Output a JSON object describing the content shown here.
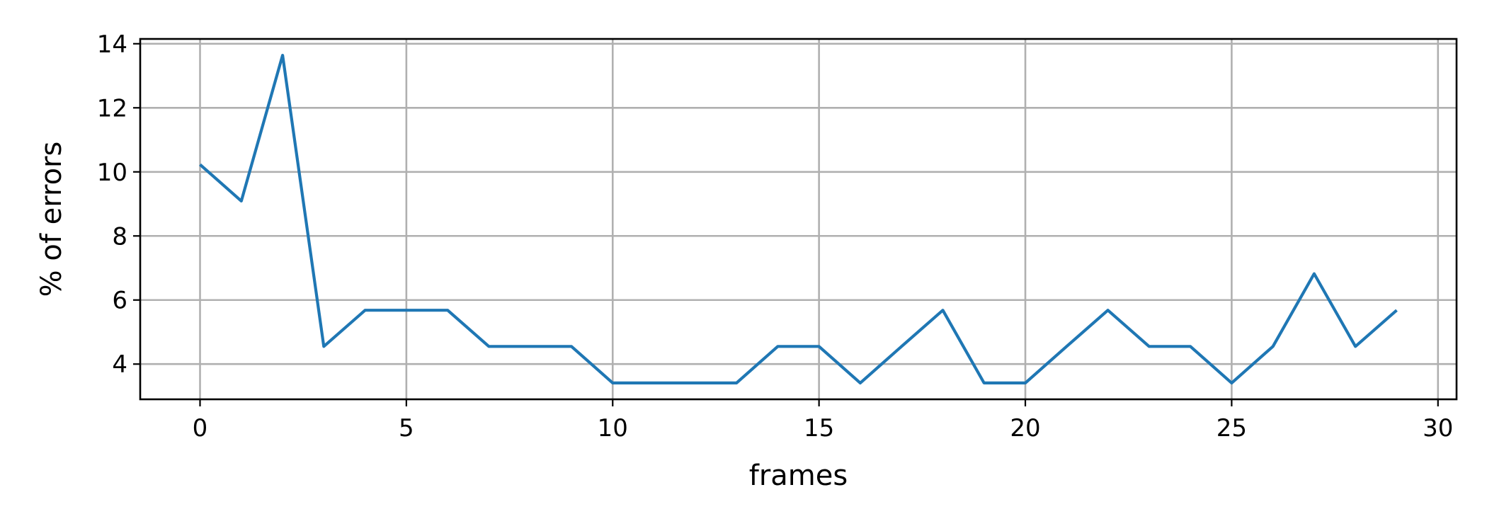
{
  "chart_data": {
    "type": "line",
    "title": "",
    "xlabel": "frames",
    "ylabel": "% of errors",
    "xlim": [
      -1.45,
      30.45
    ],
    "ylim": [
      2.9,
      14.15
    ],
    "xticks": [
      0,
      5,
      10,
      15,
      20,
      25,
      30
    ],
    "yticks": [
      4,
      6,
      8,
      10,
      12,
      14
    ],
    "grid": true,
    "legend": "none",
    "series": [
      {
        "color": "#1f77b4",
        "x": [
          0,
          1,
          2,
          3,
          4,
          5,
          6,
          7,
          8,
          9,
          10,
          11,
          12,
          13,
          14,
          15,
          16,
          17,
          18,
          19,
          20,
          21,
          22,
          23,
          24,
          25,
          26,
          27,
          28,
          29
        ],
        "values": [
          10.23,
          9.09,
          13.64,
          4.55,
          5.68,
          5.68,
          5.68,
          4.55,
          4.55,
          4.55,
          3.41,
          3.41,
          3.41,
          3.41,
          4.55,
          4.55,
          3.41,
          4.55,
          5.68,
          3.41,
          3.41,
          4.55,
          5.68,
          4.55,
          4.55,
          3.41,
          4.55,
          6.82,
          4.55,
          5.68
        ]
      }
    ]
  }
}
